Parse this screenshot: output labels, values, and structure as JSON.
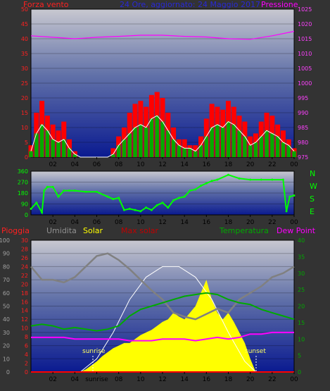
{
  "header": {
    "wind_title": "Forza vento",
    "date_title": "24 Ore, aggiornato: 24 Maggio 2017",
    "pressure_title": "Pressione"
  },
  "direction_legend": {
    "n": "N",
    "w": "W",
    "s": "S",
    "e": "E"
  },
  "bottom_legend": {
    "rain": "Pioggia",
    "humidity": "Umidita",
    "solar": "Solar",
    "max_solar": "Max solar",
    "temperature": "Temperatura",
    "dew_point": "Dew Point"
  },
  "annotations": {
    "sunrise": "sunrise",
    "sunset": "sunset",
    "sunrise_axis": "sunrise"
  },
  "colors": {
    "wind": "#ff0000",
    "wind_avg": "#00aa00",
    "pressure": "#ff00ff",
    "direction": "#00ff00",
    "humidity": "#808080",
    "solar": "#ffff00",
    "max_solar": "#ffffff",
    "temperature": "#00aa00",
    "dew_point": "#ff00ff",
    "rain": "#ff0000",
    "date": "#2020d0",
    "max_solar_label": "#c00000"
  },
  "chart_data": [
    {
      "type": "line",
      "panel": "wind-pressure",
      "x_ticks": [
        "02",
        "04",
        "06",
        "08",
        "10",
        "12",
        "14",
        "16",
        "18",
        "20",
        "22",
        "00"
      ],
      "ylim_left": [
        0,
        50
      ],
      "yticks_left": [
        "0",
        "5",
        "10",
        "15",
        "20",
        "25",
        "30",
        "35",
        "40",
        "45",
        "50"
      ],
      "ylim_right": [
        975,
        1025
      ],
      "yticks_right": [
        "975",
        "980",
        "985",
        "990",
        "995",
        "1000",
        "1005",
        "1010",
        "1015",
        "1020",
        "1025"
      ],
      "series": [
        {
          "name": "Forza vento",
          "x": [
            0,
            0.5,
            1,
            1.5,
            2,
            2.5,
            3,
            3.5,
            4,
            4.5,
            5,
            5.5,
            6,
            6.5,
            7,
            7.5,
            8,
            8.5,
            9,
            9.5,
            10,
            10.5,
            11,
            11.5,
            12,
            12.5,
            13,
            13.5,
            14,
            14.5,
            15,
            15.5,
            16,
            16.5,
            17,
            17.5,
            18,
            18.5,
            19,
            19.5,
            20,
            20.5,
            21,
            21.5,
            22,
            22.5,
            23,
            23.5,
            24
          ],
          "y": [
            4,
            15,
            19,
            14,
            11,
            9,
            12,
            6,
            2,
            0,
            0,
            0,
            0,
            0,
            0,
            3,
            7,
            10,
            15,
            18,
            19,
            17,
            21,
            22,
            20,
            15,
            10,
            6,
            6,
            4,
            4,
            7,
            13,
            18,
            17,
            16,
            19,
            17,
            14,
            12,
            7,
            8,
            12,
            15,
            14,
            11,
            9,
            6,
            3
          ]
        },
        {
          "name": "Raffica",
          "x": [
            0,
            0.5,
            1,
            1.5,
            2,
            2.5,
            3,
            3.5,
            4,
            4.5,
            5,
            5.5,
            6,
            6.5,
            7,
            7.5,
            8,
            8.5,
            9,
            9.5,
            10,
            10.5,
            11,
            11.5,
            12,
            12.5,
            13,
            13.5,
            14,
            14.5,
            15,
            15.5,
            16,
            16.5,
            17,
            17.5,
            18,
            18.5,
            19,
            19.5,
            20,
            20.5,
            21,
            21.5,
            22,
            22.5,
            23,
            23.5,
            24
          ],
          "y": [
            2,
            8,
            11,
            9,
            6,
            5,
            6,
            3,
            1,
            0,
            0,
            0,
            0,
            0,
            0,
            1,
            4,
            6,
            8,
            10,
            11,
            10,
            13,
            14,
            12,
            9,
            6,
            4,
            3,
            3,
            2,
            4,
            7,
            10,
            11,
            10,
            12,
            11,
            9,
            7,
            4,
            5,
            7,
            9,
            8,
            7,
            5,
            4,
            2
          ]
        },
        {
          "name": "Pressione",
          "x": [
            0,
            2,
            4,
            6,
            8,
            10,
            12,
            14,
            16,
            18,
            20,
            22,
            24
          ],
          "y": [
            1016,
            1015.5,
            1015,
            1015.5,
            1015.8,
            1016.2,
            1016.2,
            1015.8,
            1015.6,
            1015.0,
            1014.8,
            1016.0,
            1017.5
          ]
        }
      ]
    },
    {
      "type": "scatter",
      "panel": "wind-direction",
      "x_ticks": [
        "02",
        "04",
        "06",
        "08",
        "10",
        "12",
        "14",
        "16",
        "18",
        "20",
        "22",
        "00"
      ],
      "ylim": [
        0,
        360
      ],
      "yticks": [
        "0",
        "90",
        "180",
        "270",
        "360"
      ],
      "series": [
        {
          "name": "Direzione",
          "x": [
            0,
            0.5,
            1,
            1.2,
            1.5,
            2,
            2.5,
            3,
            3.5,
            4,
            5,
            6,
            7,
            7.5,
            8,
            8.5,
            9,
            9.5,
            10,
            10.5,
            11,
            11.5,
            12,
            12.5,
            13,
            13.5,
            14,
            14.5,
            15,
            15.5,
            16,
            16.5,
            17,
            18,
            19,
            20,
            21,
            22,
            23,
            23.3,
            23.6,
            24
          ],
          "y": [
            50,
            100,
            20,
            200,
            230,
            230,
            150,
            200,
            200,
            200,
            190,
            190,
            150,
            130,
            140,
            40,
            50,
            40,
            30,
            60,
            40,
            80,
            100,
            60,
            120,
            140,
            150,
            200,
            210,
            240,
            260,
            280,
            290,
            330,
            300,
            290,
            290,
            290,
            290,
            30,
            150,
            160
          ]
        }
      ]
    },
    {
      "type": "line",
      "panel": "temperature-solar",
      "x_ticks": [
        "02",
        "04",
        "sunrise",
        "08",
        "10",
        "12",
        "14",
        "16",
        "18",
        "20",
        "22",
        "00"
      ],
      "ylim_left_humidity": [
        0,
        100
      ],
      "yticks_left_humidity": [
        "0",
        "10",
        "20",
        "30",
        "40",
        "50",
        "60",
        "70",
        "80",
        "90",
        "100"
      ],
      "ylim_left_rain": [
        0,
        30
      ],
      "yticks_left_rain": [
        "0",
        "2",
        "4",
        "6",
        "8",
        "10",
        "12",
        "14",
        "16",
        "18",
        "20",
        "22",
        "24",
        "26",
        "28",
        "30"
      ],
      "ylim_right": [
        0,
        40
      ],
      "yticks_right": [
        "0",
        "5",
        "10",
        "15",
        "20",
        "25",
        "30",
        "35",
        "40"
      ],
      "series": [
        {
          "name": "Umidita",
          "x": [
            0,
            1,
            2,
            3,
            4,
            5,
            6,
            7,
            8,
            9,
            10,
            11,
            12,
            13,
            14,
            15,
            16,
            17,
            18,
            19,
            20,
            21,
            22,
            23,
            24
          ],
          "y": [
            80,
            70,
            70,
            68,
            72,
            80,
            88,
            90,
            85,
            78,
            70,
            62,
            55,
            45,
            42,
            40,
            44,
            48,
            45,
            55,
            60,
            65,
            72,
            75,
            80
          ]
        },
        {
          "name": "Solar",
          "x": [
            4.5,
            5,
            5.5,
            6,
            6.5,
            7,
            7.5,
            8,
            8.5,
            9,
            9.5,
            10,
            10.5,
            11,
            11.5,
            12,
            12.5,
            13,
            13.5,
            14,
            14.5,
            15,
            15.5,
            16,
            16.5,
            17,
            17.5,
            18,
            18.5,
            19,
            19.5,
            20,
            20.5
          ],
          "y": [
            0,
            2,
            5,
            8,
            12,
            15,
            18,
            20,
            22,
            22,
            25,
            28,
            30,
            32,
            35,
            38,
            40,
            45,
            42,
            40,
            45,
            50,
            60,
            70,
            55,
            45,
            40,
            45,
            38,
            30,
            22,
            10,
            0
          ]
        },
        {
          "name": "Max solar",
          "x": [
            4.5,
            6,
            7.5,
            9,
            10.5,
            12,
            13.5,
            15,
            16.5,
            18,
            19.5,
            20.5
          ],
          "y": [
            0,
            10,
            30,
            55,
            72,
            80,
            80,
            72,
            55,
            30,
            8,
            0
          ]
        },
        {
          "name": "Temperatura",
          "x": [
            0,
            1,
            2,
            3,
            4,
            5,
            6,
            7,
            8,
            9,
            10,
            11,
            12,
            13,
            14,
            15,
            16,
            17,
            18,
            19,
            20,
            21,
            22,
            23,
            24
          ],
          "y": [
            14,
            14.5,
            14,
            13,
            13.5,
            13,
            12.5,
            13,
            14,
            17,
            19,
            20,
            21,
            22,
            23,
            23.5,
            24,
            23.5,
            22,
            21,
            20.5,
            19,
            18,
            17,
            16
          ]
        },
        {
          "name": "Dew Point",
          "x": [
            0,
            1,
            2,
            3,
            4,
            5,
            6,
            7,
            8,
            9,
            10,
            11,
            12,
            13,
            14,
            15,
            16,
            17,
            18,
            19,
            20,
            21,
            22,
            23,
            24
          ],
          "y": [
            10.5,
            10.5,
            10.5,
            10.5,
            10,
            10,
            10,
            10,
            10,
            9.5,
            9.5,
            9.5,
            10,
            10,
            10,
            9.5,
            10,
            10.5,
            10,
            10.5,
            11.5,
            11.5,
            12,
            12,
            12
          ]
        },
        {
          "name": "Pioggia",
          "x": [
            0,
            24
          ],
          "y": [
            0,
            0
          ]
        }
      ]
    }
  ]
}
